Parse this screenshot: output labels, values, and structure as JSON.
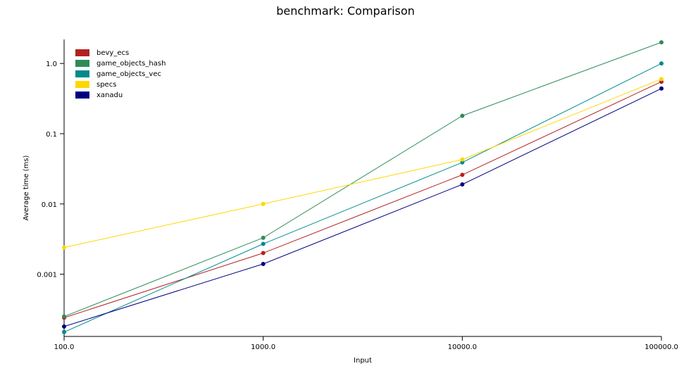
{
  "chart_data": {
    "type": "line",
    "title": "benchmark: Comparison",
    "xlabel": "Input",
    "ylabel": "Average time (ms)",
    "xscale": "log",
    "yscale": "log",
    "x": [
      100,
      1000,
      10000,
      100000
    ],
    "x_tick_labels": [
      "100.0",
      "1000.0",
      "10000.0",
      "100000.0"
    ],
    "y_ticks": [
      0.001,
      0.01,
      0.1,
      1.0
    ],
    "y_tick_labels": [
      "0.001",
      "0.01",
      "0.1",
      "1.0"
    ],
    "xlim": [
      100,
      100000
    ],
    "ylim": [
      0.00013,
      2.2
    ],
    "grid": false,
    "legend_position": "top-left",
    "series": [
      {
        "name": "bevy_ecs",
        "color": "#b22222",
        "values": [
          0.00024,
          0.002,
          0.026,
          0.55
        ]
      },
      {
        "name": "game_objects_hash",
        "color": "#2e8b57",
        "values": [
          0.00025,
          0.0033,
          0.18,
          2.0
        ]
      },
      {
        "name": "game_objects_vec",
        "color": "#008b8b",
        "values": [
          0.00015,
          0.0027,
          0.039,
          1.0
        ]
      },
      {
        "name": "specs",
        "color": "#ffd700",
        "values": [
          0.0024,
          0.01,
          0.043,
          0.6
        ]
      },
      {
        "name": "xanadu",
        "color": "#000080",
        "values": [
          0.00018,
          0.0014,
          0.019,
          0.44
        ]
      }
    ]
  }
}
